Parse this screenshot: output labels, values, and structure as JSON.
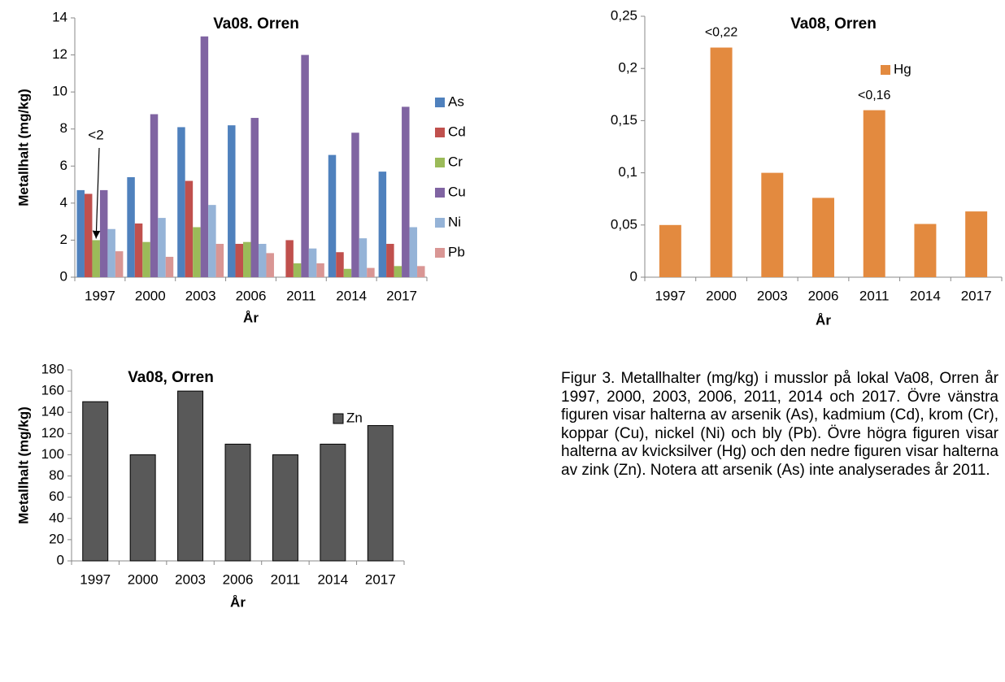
{
  "chart_data": [
    {
      "type": "bar",
      "title": "Va08. Orren",
      "ylabel": "Metallhalt (mg/kg)",
      "xlabel": "År",
      "categories": [
        "1997",
        "2000",
        "2003",
        "2006",
        "2011",
        "2014",
        "2017"
      ],
      "series": [
        {
          "name": "As",
          "color": "#4f81bd",
          "values": [
            4.7,
            5.4,
            8.1,
            8.2,
            null,
            6.6,
            5.7
          ]
        },
        {
          "name": "Cd",
          "color": "#c0504d",
          "values": [
            4.5,
            2.9,
            5.2,
            1.8,
            2.0,
            1.35,
            1.8
          ]
        },
        {
          "name": "Cr",
          "color": "#9bbb59",
          "values": [
            2.0,
            1.9,
            2.7,
            1.9,
            0.75,
            0.45,
            0.6
          ]
        },
        {
          "name": "Cu",
          "color": "#8064a2",
          "values": [
            4.7,
            8.8,
            13.0,
            8.6,
            12.0,
            7.8,
            9.2
          ]
        },
        {
          "name": "Ni",
          "color": "#95b3d7",
          "values": [
            2.6,
            3.2,
            3.9,
            1.8,
            1.55,
            2.1,
            2.7
          ]
        },
        {
          "name": "Pb",
          "color": "#d99694",
          "values": [
            1.4,
            1.1,
            1.8,
            1.3,
            0.75,
            0.5,
            0.6
          ]
        }
      ],
      "annotations": [
        {
          "text": "<2",
          "series": 2,
          "index": 0
        }
      ],
      "ylim": [
        0,
        14
      ],
      "yticks": [
        0,
        2,
        4,
        6,
        8,
        10,
        12,
        14
      ],
      "grid": false
    },
    {
      "type": "bar",
      "title": "Va08, Orren",
      "xlabel": "År",
      "categories": [
        "1997",
        "2000",
        "2003",
        "2006",
        "2011",
        "2014",
        "2017"
      ],
      "series": [
        {
          "name": "Hg",
          "color": "#e38a3f",
          "values": [
            0.05,
            0.22,
            0.1,
            0.076,
            0.16,
            0.051,
            0.063
          ],
          "value_labels": [
            null,
            "<0,22",
            null,
            null,
            "<0,16",
            null,
            null
          ]
        }
      ],
      "ylim": [
        0,
        0.25
      ],
      "yticks": [
        0,
        {
          "value": 0.05,
          "label": "0,05"
        },
        {
          "value": 0.1,
          "label": "0,1"
        },
        {
          "value": 0.15,
          "label": "0,15"
        },
        {
          "value": 0.2,
          "label": "0,2"
        },
        {
          "value": 0.25,
          "label": "0,25"
        }
      ],
      "grid": false
    },
    {
      "type": "bar",
      "title": "Va08, Orren",
      "ylabel": "Metallhalt (mg/kg)",
      "xlabel": "År",
      "categories": [
        "1997",
        "2000",
        "2003",
        "2006",
        "2011",
        "2014",
        "2017"
      ],
      "series": [
        {
          "name": "Zn",
          "color": "#595959",
          "values": [
            150,
            100,
            160,
            110,
            100,
            110,
            127.5
          ]
        }
      ],
      "ylim": [
        0,
        180
      ],
      "yticks": [
        0,
        20,
        40,
        60,
        80,
        100,
        120,
        140,
        160,
        180
      ],
      "grid": false
    }
  ],
  "caption": "Figur 3. Metallhalter (mg/kg) i musslor på lokal Va08, Orren år 1997, 2000, 2003, 2006, 2011, 2014 och 2017. Övre vänstra figuren visar halterna av arsenik (As), kadmium (Cd), krom (Cr), koppar (Cu), nickel (Ni) och bly (Pb). Övre högra figuren visar halterna av kvicksilver (Hg) och den nedre figuren visar halterna av zink (Zn). Notera att arsenik (As) inte analyserades år 2011."
}
